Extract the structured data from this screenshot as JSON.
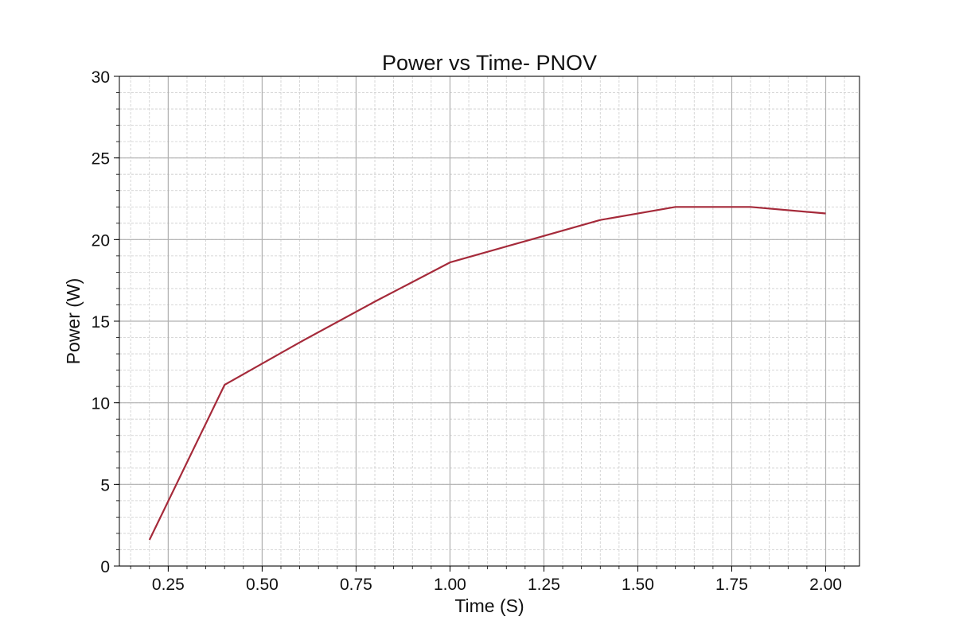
{
  "chart_data": {
    "type": "line",
    "title": "Power vs Time- PNOV",
    "xlabel": "Time (S)",
    "ylabel": "Power (W)",
    "xlim": [
      0.12,
      2.09
    ],
    "ylim": [
      0,
      30
    ],
    "x_major_ticks": [
      0.25,
      0.5,
      0.75,
      1.0,
      1.25,
      1.5,
      1.75,
      2.0
    ],
    "x_tick_labels": [
      "0.25",
      "0.50",
      "0.75",
      "1.00",
      "1.25",
      "1.50",
      "1.75",
      "2.00"
    ],
    "y_major_ticks": [
      0,
      5,
      10,
      15,
      20,
      25,
      30
    ],
    "y_tick_labels": [
      "0",
      "5",
      "10",
      "15",
      "20",
      "25",
      "30"
    ],
    "x_minor_step": 0.05,
    "y_minor_step": 1,
    "grid": true,
    "colors": {
      "line": "#a52a3a",
      "major_grid": "#b0b0b0",
      "minor_grid": "#cccccc"
    },
    "series": [
      {
        "x": [
          0.2,
          0.4,
          0.6,
          0.8,
          1.0,
          1.2,
          1.4,
          1.6,
          1.8,
          2.0
        ],
        "values": [
          1.6,
          11.1,
          13.7,
          16.2,
          18.6,
          19.9,
          21.2,
          22.0,
          22.0,
          21.6
        ]
      }
    ]
  }
}
